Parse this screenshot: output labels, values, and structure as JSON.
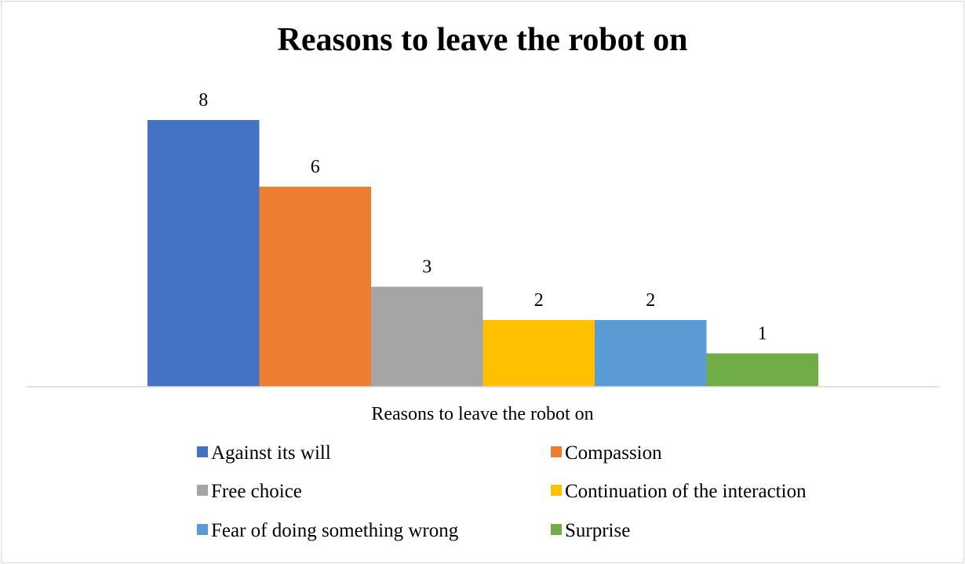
{
  "chart_data": {
    "type": "bar",
    "title": "Reasons to leave the robot on",
    "xlabel": "Reasons to leave the robot on",
    "ylabel": "",
    "ylim": [
      0,
      9
    ],
    "grid": false,
    "legend_position": "bottom",
    "series": [
      {
        "name": "Against its will",
        "values": [
          8
        ],
        "color": "#4472c4"
      },
      {
        "name": "Compassion",
        "values": [
          6
        ],
        "color": "#ed7d31"
      },
      {
        "name": "Free choice",
        "values": [
          3
        ],
        "color": "#a5a5a5"
      },
      {
        "name": "Continuation of the interaction",
        "values": [
          2
        ],
        "color": "#ffc000"
      },
      {
        "name": "Fear of doing something wrong",
        "values": [
          2
        ],
        "color": "#5b9bd5"
      },
      {
        "name": "Surprise",
        "values": [
          1
        ],
        "color": "#70ad47"
      }
    ]
  }
}
